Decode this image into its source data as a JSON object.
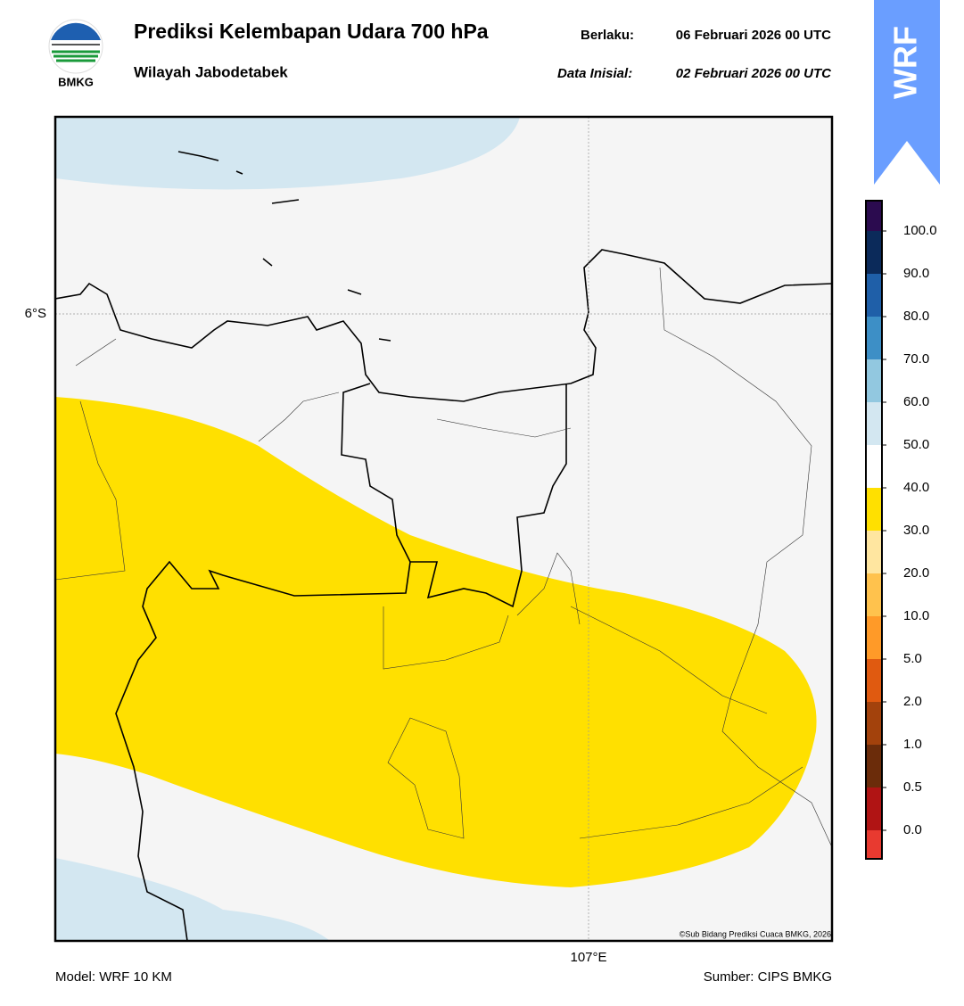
{
  "header": {
    "logo_text": "BMKG",
    "title": "Prediksi Kelembapan Udara 700 hPa",
    "subtitle": "Wilayah Jabodetabek",
    "valid_label": "Berlaku:",
    "valid_date": "06 Februari 2026 00 UTC",
    "init_label": "Data Inisial:",
    "init_date": "02 Februari 2026 00 UTC",
    "badge": "WRF"
  },
  "map": {
    "lat_label": "6°S",
    "lon_label": "107°E",
    "credit": "©Sub Bidang Prediksi Cuaca BMKG, 2026"
  },
  "colorbar": {
    "labels": [
      "100.0",
      "90.0",
      "80.0",
      "70.0",
      "60.0",
      "50.0",
      "40.0",
      "30.0",
      "20.0",
      "10.0",
      "5.0",
      "2.0",
      "1.0",
      "0.5",
      "0.0"
    ],
    "colors": [
      "#2b0b4f",
      "#0b2a5a",
      "#1f5fa8",
      "#3d8fc6",
      "#92c8e0",
      "#d3e7f1",
      "#ffffff",
      "#ffe000",
      "#ffe6a0",
      "#ffc24d",
      "#ff9a28",
      "#e05a10",
      "#a3420c",
      "#6b2c0a",
      "#b01414",
      "#e83a30"
    ]
  },
  "footer": {
    "model": "Model: WRF 10 KM",
    "source": "Sumber: CIPS BMKG"
  }
}
